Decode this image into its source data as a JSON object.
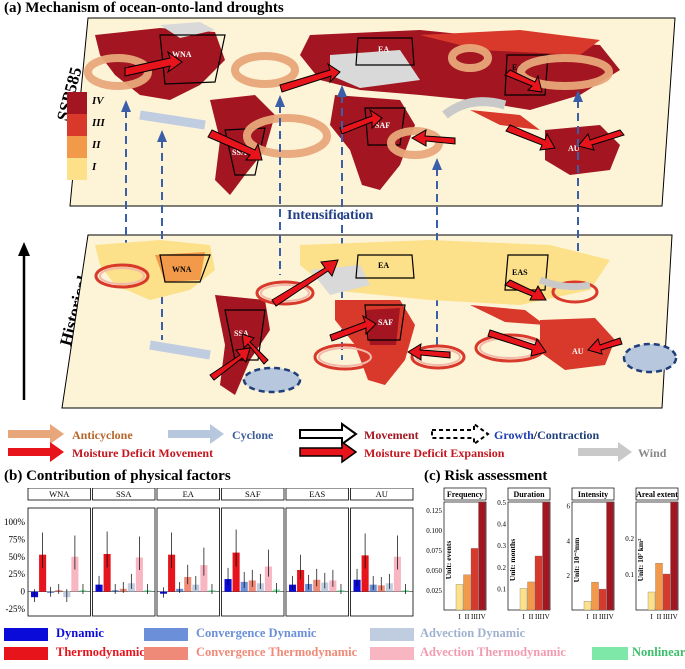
{
  "titles": {
    "a": "(a) Mechanism of ocean-onto-land droughts",
    "b": "(b) Contribution of physical factors",
    "c": "(c) Risk assessment"
  },
  "map": {
    "top_label": "SSP585",
    "bottom_label": "Historical",
    "intensification": "Intensification",
    "scale_levels": [
      "IV",
      "III",
      "II",
      "I"
    ],
    "colors": {
      "IV": "#a31621",
      "III": "#d8392b",
      "II": "#f2994a",
      "I": "#fce08a",
      "land": "#d9d9d9",
      "ocean": "#ffffff"
    },
    "top_regions": [
      "WNA",
      "EA",
      "EAS",
      "SSA",
      "SAF",
      "AU"
    ],
    "bottom_regions": [
      "WNA",
      "EA",
      "EAS",
      "SSA",
      "SAF",
      "AU"
    ]
  },
  "legend_a": {
    "anticyclone": "Anticyclone",
    "cyclone": "Cyclone",
    "movement": "Movement",
    "growth": "Growth",
    "slash": "/",
    "contraction": "Contraction",
    "moisture_deficit_movement": "Moisture Deficit Movement",
    "moisture_deficit_expansion": "Moisture Deficit Expansion",
    "wind": "Wind",
    "colors": {
      "anticyclone": "#e8a77a",
      "cyclone": "#b7c7de",
      "moisture": "#e8141c",
      "wind": "#c9c9c9",
      "growth": "#1f3fb5",
      "contraction": "#1f3f7a"
    }
  },
  "chart_data": [
    {
      "type": "bar",
      "title": "Contribution of physical factors",
      "ylabel": "",
      "ylim": [
        -35,
        120
      ],
      "yticks": [
        "100%",
        "75%",
        "50%",
        "25%",
        "0",
        "-25%"
      ],
      "categories": [
        "WNA",
        "SSA",
        "EA",
        "SAF",
        "EAS",
        "AU"
      ],
      "series": [
        {
          "name": "Dynamic",
          "color": "#0a0ad9",
          "values": [
            -8,
            10,
            -3,
            18,
            10,
            17
          ]
        },
        {
          "name": "Thermodynamic",
          "color": "#e8141c",
          "values": [
            53,
            54,
            53,
            56,
            31,
            52
          ]
        },
        {
          "name": "Convergence Dynamic",
          "color": "#6b8fd8",
          "values": [
            -2,
            2,
            4,
            14,
            11,
            10
          ]
        },
        {
          "name": "Convergence Thermodynamic",
          "color": "#f08a78",
          "values": [
            2,
            4,
            21,
            16,
            17,
            9
          ]
        },
        {
          "name": "Advection Dynamic",
          "color": "#c0cce0",
          "values": [
            -8,
            12,
            10,
            12,
            13,
            12
          ]
        },
        {
          "name": "Advection Thermodynamic",
          "color": "#f7b6c2",
          "values": [
            50,
            49,
            38,
            36,
            16,
            50
          ]
        },
        {
          "name": "Nonlinear",
          "color": "#7ee8a8",
          "values": [
            2,
            2,
            2,
            3,
            2,
            2
          ]
        }
      ]
    },
    {
      "type": "bar",
      "title": "Risk assessment",
      "panels": [
        {
          "name": "Frequency",
          "unit": "Unit: events",
          "categories": [
            "I",
            "II",
            "III",
            "IV"
          ],
          "values": [
            0.032,
            0.044,
            0.077,
            0.135
          ],
          "ylim": [
            0,
            0.135
          ],
          "yticks": [
            "0.125",
            "0.100",
            "0.075",
            "0.050",
            "0.025"
          ]
        },
        {
          "name": "Duration",
          "unit": "Unit: months",
          "categories": [
            "I",
            "II",
            "III",
            "IV"
          ],
          "values": [
            0.1,
            0.13,
            0.25,
            0.5
          ],
          "ylim": [
            0,
            0.5
          ],
          "yticks": [
            "0.5",
            "0.4",
            "0.3",
            "0.2",
            "0.1"
          ]
        },
        {
          "name": "Intensity",
          "unit": "Unit: 10⁻⁵mm",
          "categories": [
            "I",
            "II",
            "III",
            "IV"
          ],
          "values": [
            0.5,
            1.6,
            1.2,
            6.2
          ],
          "ylim": [
            0,
            6.2
          ],
          "yticks": [
            "6",
            "4",
            "2"
          ]
        },
        {
          "name": "Areal extent",
          "unit": "Unit: 10⁷ km²",
          "categories": [
            "I",
            "II",
            "III",
            "IV"
          ],
          "values": [
            0.05,
            0.13,
            0.1,
            0.3
          ],
          "ylim": [
            0,
            0.3
          ],
          "yticks": [
            "0.2",
            "0.1"
          ]
        }
      ],
      "colors": [
        "#fce08a",
        "#f2994a",
        "#d8392b",
        "#a31621"
      ]
    }
  ],
  "legend_b": {
    "dynamic": "Dynamic",
    "thermodynamic": "Thermodynamic",
    "convergence_dynamic": "Convergence Dynamic",
    "convergence_thermodynamic": "Convergence Thermodynamic",
    "advection_dynamic": "Advection Dynamic",
    "advection_thermodynamic": "Advection Thermodynamic",
    "nonlinear": "Nonlinear"
  }
}
